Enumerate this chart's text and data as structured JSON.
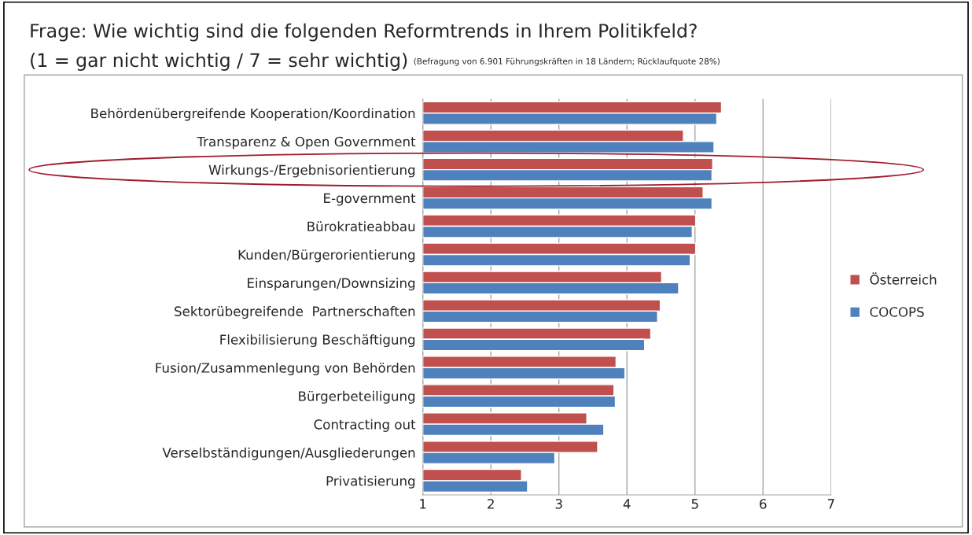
{
  "chart_data": {
    "type": "bar",
    "orientation": "horizontal",
    "title": "Frage: Wie wichtig sind die folgenden Reformtrends in Ihrem Politikfeld?",
    "subtitle": "(1 = gar nicht wichtig / 7 = sehr wichtig)",
    "annotations": [
      "(Befragung von 6.901 Führungskräften in 18 Ländern; Rücklaufquote 28%)"
    ],
    "categories": [
      "Behördenübergreifende Kooperation/Koordination",
      "Transparenz & Open Government",
      "Wirkungs-/Ergebnisorientierung",
      "E-government",
      "Bürokratieabbau",
      "Kunden/Bürgerorientierung",
      "Einsparungen/Downsizing",
      "Sektorübegreifende  Partnerschaften",
      "Flexibilisierung Beschäftigung",
      "Fusion/Zusammenlegung von Behörden",
      "Bürgerbeteiligung",
      "Contracting out",
      "Verselbständigungen/Ausgliederungen",
      "Privatisierung"
    ],
    "series": [
      {
        "name": "Österreich",
        "color": "#c0504d",
        "values": [
          5.39,
          4.83,
          5.26,
          5.12,
          5.01,
          5.01,
          4.51,
          4.49,
          4.35,
          3.84,
          3.81,
          3.41,
          3.57,
          2.45
        ]
      },
      {
        "name": "COCOPS",
        "color": "#4f81bd",
        "values": [
          5.32,
          5.28,
          5.25,
          5.25,
          4.96,
          4.93,
          4.76,
          4.45,
          4.26,
          3.97,
          3.83,
          3.66,
          2.94,
          2.54
        ]
      }
    ],
    "xlim": [
      1,
      7
    ],
    "xticks": [
      1,
      2,
      3,
      4,
      5,
      6,
      7
    ],
    "grid": "x",
    "legend": "right"
  }
}
